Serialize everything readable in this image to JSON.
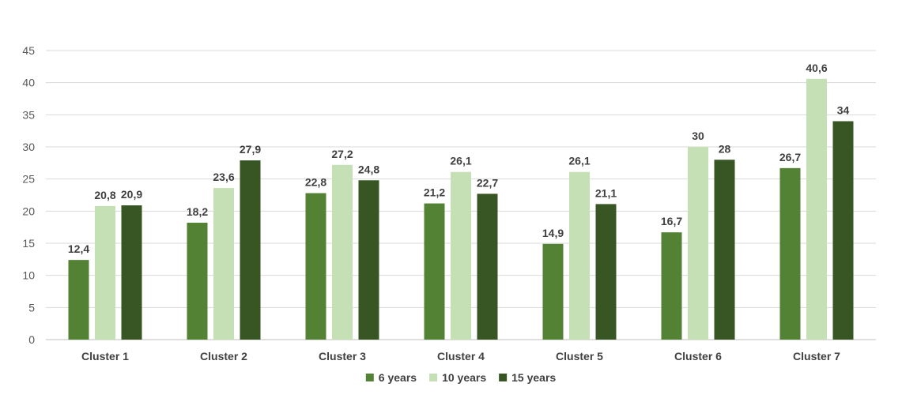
{
  "chart_data": {
    "type": "bar",
    "title": "",
    "xlabel": "",
    "ylabel": "",
    "ylim": [
      0,
      45
    ],
    "yticks": [
      0,
      5,
      10,
      15,
      20,
      25,
      30,
      35,
      40,
      45
    ],
    "grid": true,
    "legend_position": "bottom",
    "categories": [
      "Cluster 1",
      "Cluster 2",
      "Cluster 3",
      "Cluster 4",
      "Cluster 5",
      "Cluster 6",
      "Cluster 7"
    ],
    "series": [
      {
        "name": "6 years",
        "color": "#548235",
        "values": [
          12.4,
          18.2,
          22.8,
          21.2,
          14.9,
          16.7,
          26.7
        ],
        "labels": [
          "12,4",
          "18,2",
          "22,8",
          "21,2",
          "14,9",
          "16,7",
          "26,7"
        ]
      },
      {
        "name": "10 years",
        "color": "#c5e0b4",
        "values": [
          20.8,
          23.6,
          27.2,
          26.1,
          26.1,
          30,
          40.6
        ],
        "labels": [
          "20,8",
          "23,6",
          "27,2",
          "26,1",
          "26,1",
          "30",
          "40,6"
        ]
      },
      {
        "name": "15 years",
        "color": "#375623",
        "values": [
          20.9,
          27.9,
          24.8,
          22.7,
          21.1,
          28,
          34
        ],
        "labels": [
          "20,9",
          "27,9",
          "24,8",
          "22,7",
          "21,1",
          "28",
          "34"
        ]
      }
    ]
  }
}
